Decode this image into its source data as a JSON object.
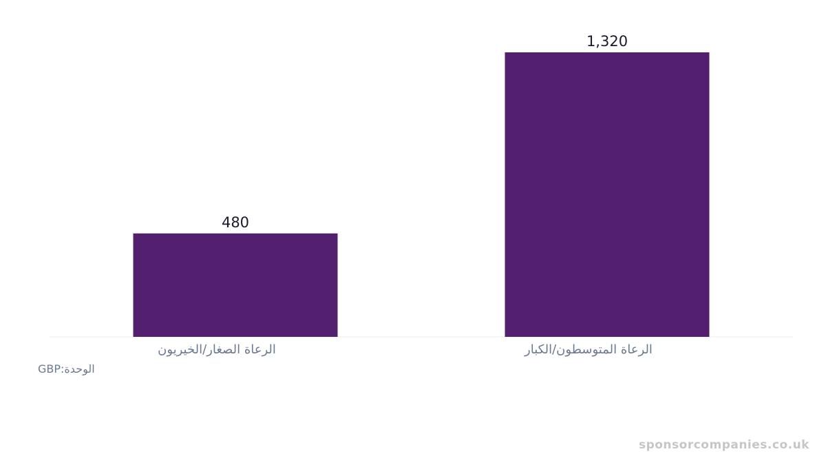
{
  "chart_data": {
    "type": "bar",
    "categories": [
      "الرعاة الصغار/الخيريون",
      "الرعاة المتوسطون/الكبار"
    ],
    "values": [
      480,
      1320
    ],
    "value_labels": [
      "480",
      "1,320"
    ],
    "ylim": [
      0,
      1320
    ],
    "grid": false,
    "bar_color": "#52206f"
  },
  "unit_label": "GBP:الوحدة",
  "watermark": "sponsorcompanies.co.uk",
  "colors": {
    "bar": "#52206f",
    "value_label": "#1a1a2e",
    "category_label": "#6b7a90",
    "baseline": "#eeeeee"
  }
}
